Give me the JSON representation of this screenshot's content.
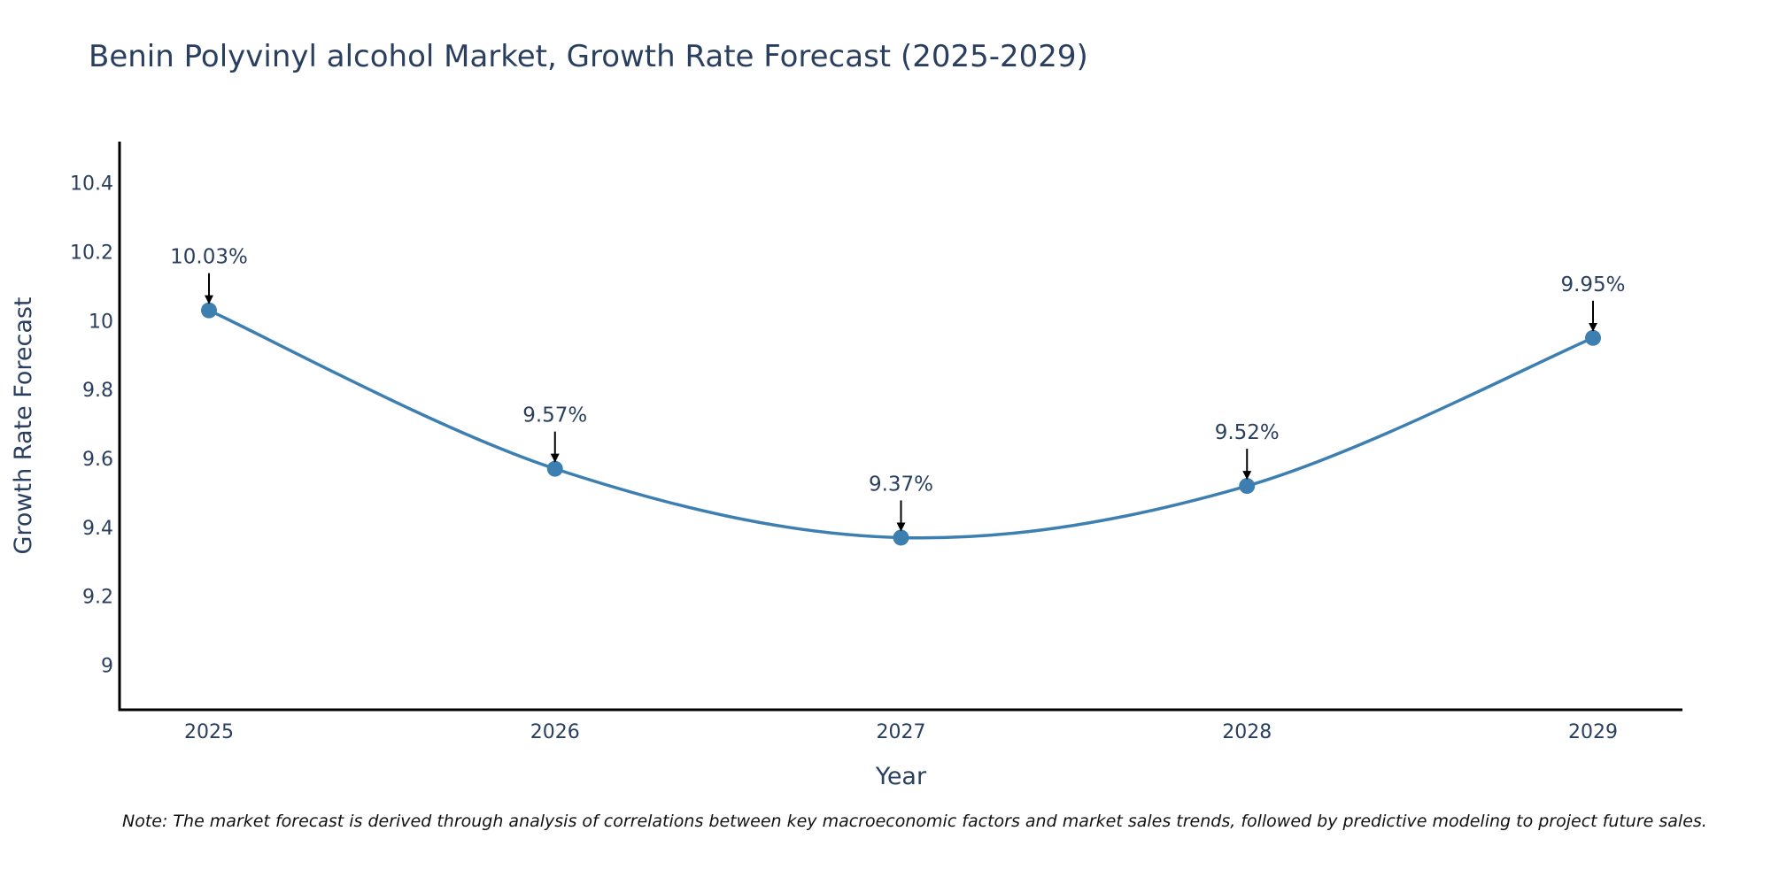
{
  "chart_data": {
    "type": "line",
    "title": "Benin Polyvinyl alcohol Market, Growth Rate Forecast (2025-2029)",
    "xlabel": "Year",
    "ylabel": "Growth Rate Forecast",
    "categories": [
      "2025",
      "2026",
      "2027",
      "2028",
      "2029"
    ],
    "values": [
      10.03,
      9.57,
      9.37,
      9.52,
      9.95
    ],
    "data_labels": [
      "10.03%",
      "9.57%",
      "9.37%",
      "9.52%",
      "9.95%"
    ],
    "ylim": [
      8.87,
      10.52
    ],
    "yticks": [
      9,
      9.2,
      9.4,
      9.6,
      9.8,
      10,
      10.2,
      10.4
    ],
    "ytick_labels": [
      "9",
      "9.2",
      "9.4",
      "9.6",
      "9.8",
      "10",
      "10.2",
      "10.4"
    ],
    "grid": false,
    "line_shape": "spline",
    "series_color": "#3d7fb0",
    "axis_color": "#000000",
    "arrow_color": "#000000"
  },
  "note": "Note: The market forecast is derived through analysis of correlations between key macroeconomic factors and market sales trends, followed by predictive modeling to project future sales."
}
